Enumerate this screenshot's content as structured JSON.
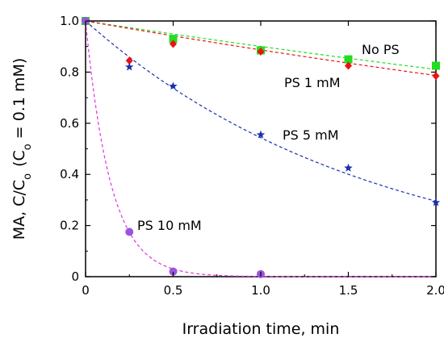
{
  "chart_data": {
    "type": "scatter",
    "xlabel": "Irradiation time, min",
    "ylabel_main": "MA, C/C",
    "ylabel_sub": "o",
    "ylabel_paren_open": "(C",
    "ylabel_paren_rest": " = 0.1 mM)",
    "xlim": [
      0,
      2.0
    ],
    "ylim": [
      0,
      1.0
    ],
    "x_ticks": [
      0,
      0.5,
      1.0,
      1.5,
      2.0
    ],
    "x_tick_labels": [
      "0",
      "0.5",
      "1.0",
      "1.5",
      "2.0"
    ],
    "y_ticks": [
      0,
      0.2,
      0.4,
      0.6,
      0.8,
      1.0
    ],
    "y_tick_labels": [
      "0",
      "0.2",
      "0.4",
      "0.6",
      "0.8",
      "1.0"
    ],
    "grid": false,
    "series": [
      {
        "name": "No PS",
        "marker": "square",
        "color": "#22dd22",
        "x": [
          0,
          0.5,
          1.0,
          1.5,
          2.0
        ],
        "y": [
          1.0,
          0.93,
          0.885,
          0.85,
          0.825
        ],
        "fit_k": 0.105,
        "fit_type": "exp"
      },
      {
        "name": "PS 1 mM",
        "marker": "diamond",
        "color": "#ee1111",
        "x": [
          0,
          0.25,
          0.5,
          1.0,
          1.5,
          2.0
        ],
        "y": [
          1.0,
          0.845,
          0.91,
          0.88,
          0.825,
          0.785
        ],
        "fit_k": 0.12,
        "fit_type": "exp"
      },
      {
        "name": "PS 5 mM",
        "marker": "star",
        "color": "#1a2fb0",
        "x": [
          0,
          0.25,
          0.5,
          1.0,
          1.5,
          2.0
        ],
        "y": [
          1.0,
          0.82,
          0.745,
          0.555,
          0.425,
          0.29
        ],
        "fit_k": 0.61,
        "fit_type": "exp"
      },
      {
        "name": "PS 10 mM",
        "marker": "circle",
        "color": "#9a55dd",
        "x": [
          0,
          0.25,
          0.5,
          1.0
        ],
        "y": [
          1.0,
          0.175,
          0.02,
          0.01
        ],
        "fit_k": 7.0,
        "fit_type": "exp"
      }
    ],
    "fit_line_colors": [
      "#22dd22",
      "#ee1111",
      "#1a2fb0",
      "#dd33dd"
    ]
  }
}
